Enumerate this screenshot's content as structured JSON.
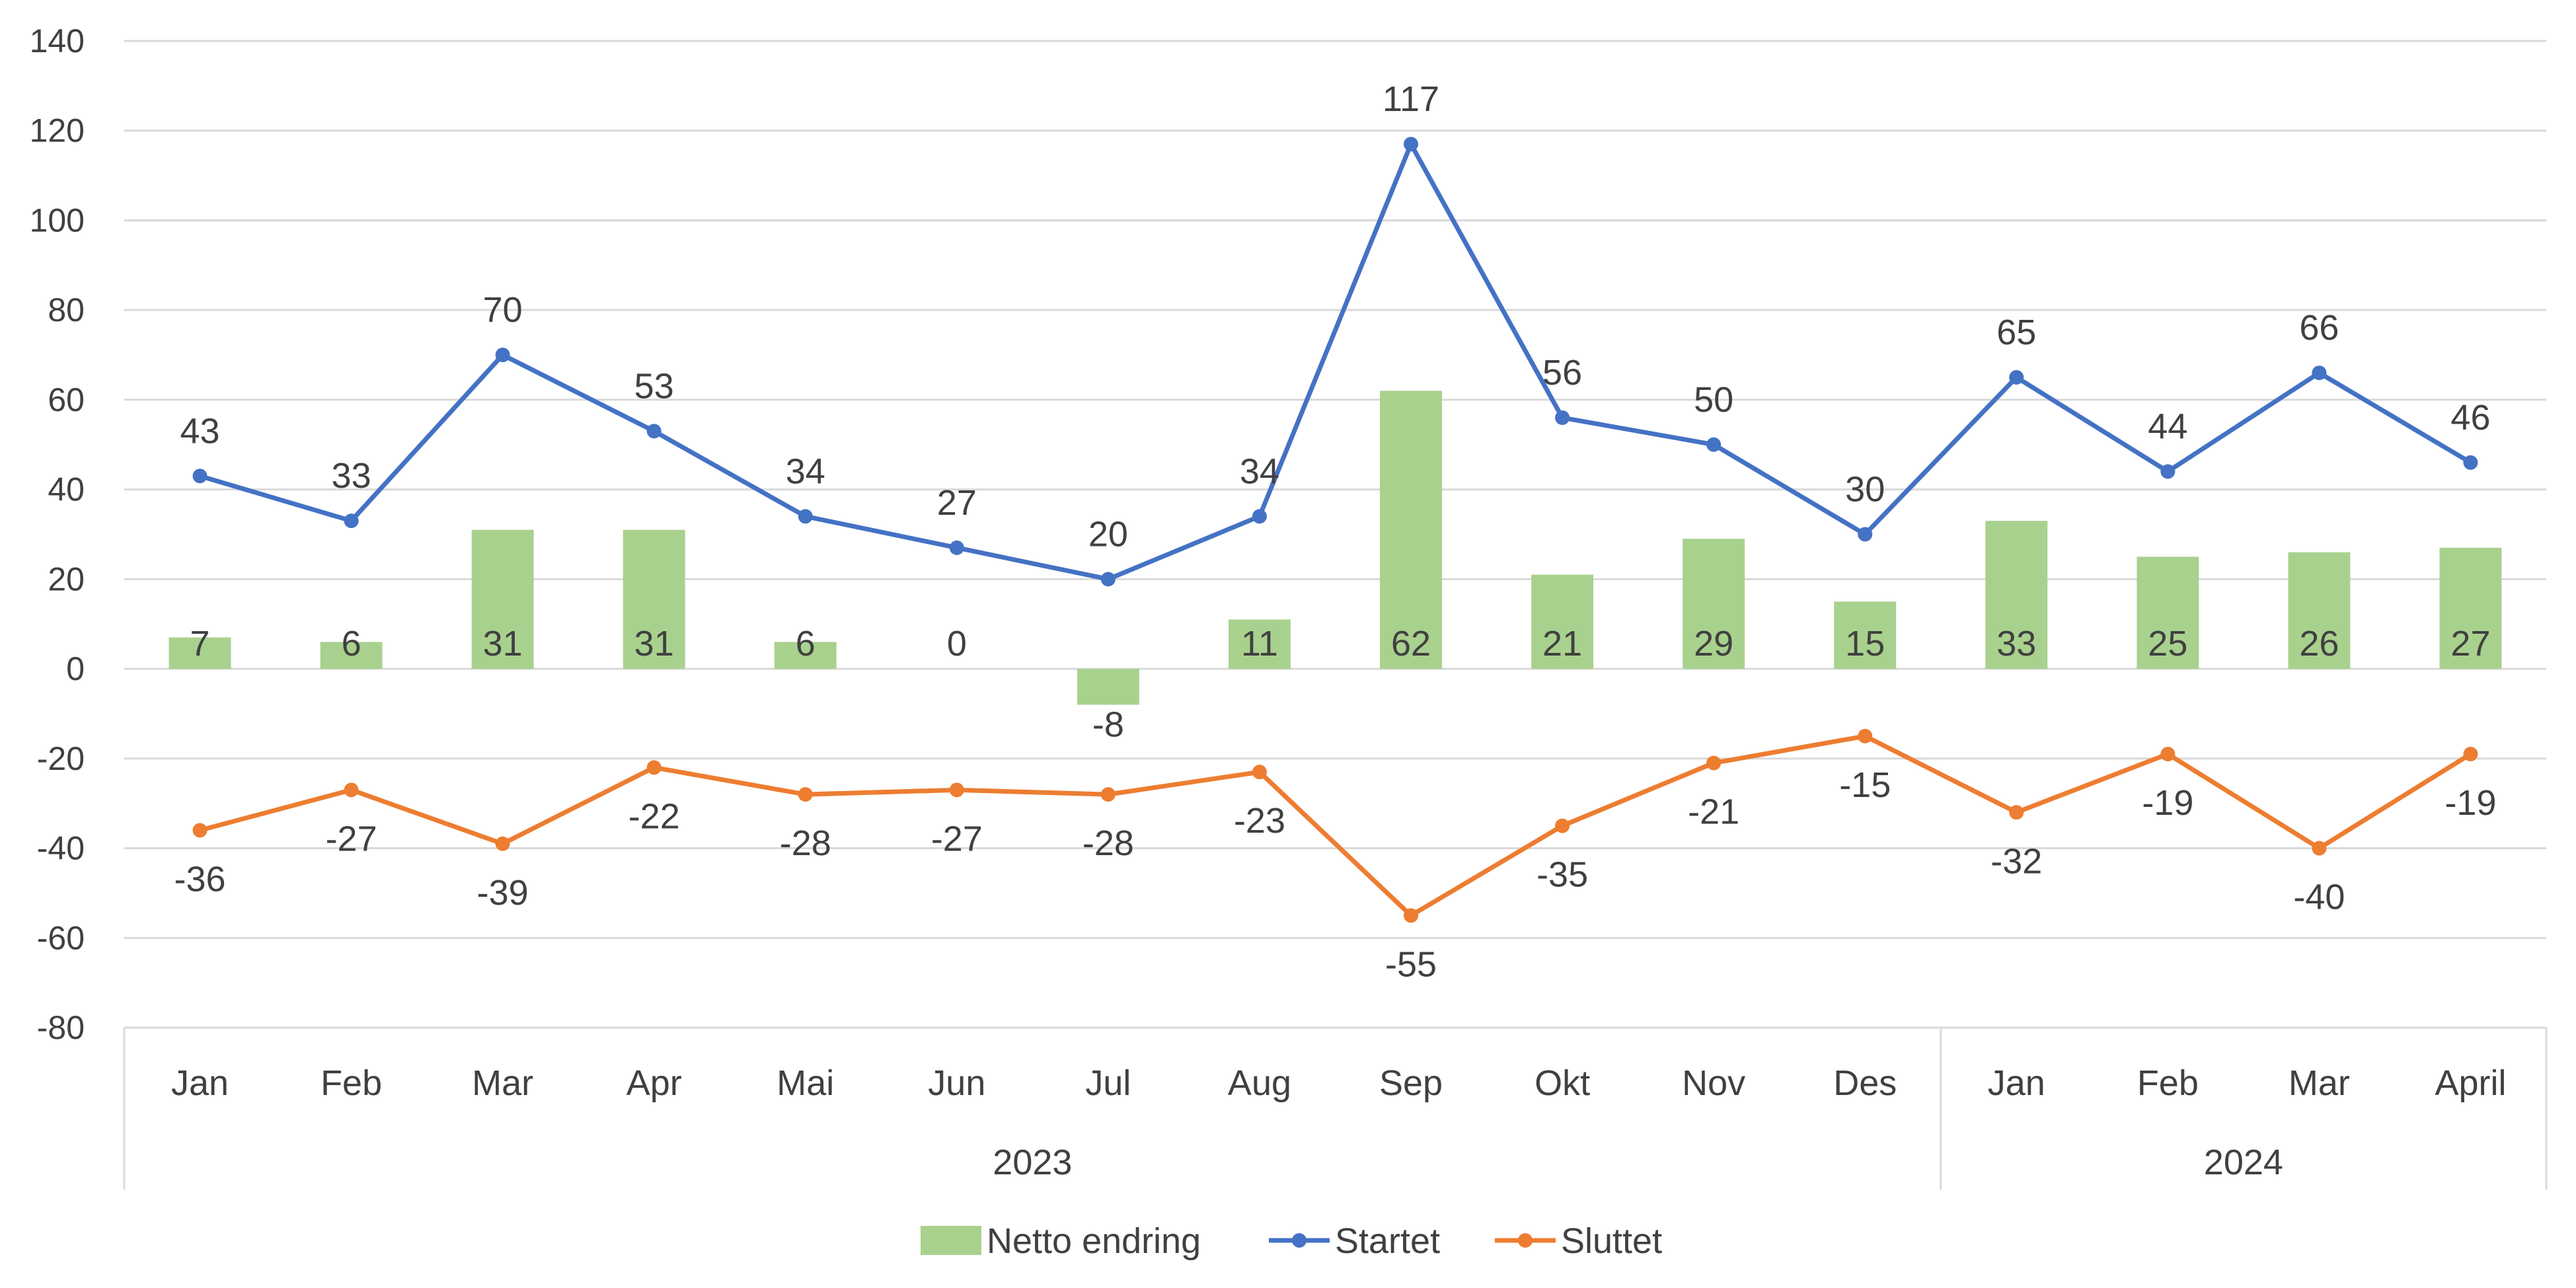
{
  "chart_data": {
    "type": "bar+line",
    "title": "",
    "yticks": [
      "140",
      "120",
      "100",
      "80",
      "60",
      "40",
      "20",
      "0",
      "-20",
      "-40",
      "-60",
      "-80"
    ],
    "ylim": [
      -80,
      140
    ],
    "ystep": 20,
    "grid": true,
    "categories": [
      "Jan",
      "Feb",
      "Mar",
      "Apr",
      "Mai",
      "Jun",
      "Jul",
      "Aug",
      "Sep",
      "Okt",
      "Nov",
      "Des",
      "Jan",
      "Feb",
      "Mar",
      "April"
    ],
    "groups": [
      {
        "label": "2023",
        "start": 0,
        "end": 11
      },
      {
        "label": "2024",
        "start": 12,
        "end": 15
      }
    ],
    "series": [
      {
        "name": "Netto endring",
        "kind": "bar",
        "color": "#a9d18e",
        "values": [
          7,
          6,
          31,
          31,
          6,
          0,
          -8,
          11,
          62,
          21,
          29,
          15,
          33,
          25,
          26,
          27
        ],
        "labels": [
          "7",
          "6",
          "31",
          "31",
          "6",
          "0",
          "-8",
          "11",
          "62",
          "21",
          "29",
          "15",
          "33",
          "25",
          "26",
          "27"
        ]
      },
      {
        "name": "Startet",
        "kind": "line",
        "color": "#4472c4",
        "values": [
          43,
          33,
          70,
          53,
          34,
          27,
          20,
          34,
          117,
          56,
          50,
          30,
          65,
          44,
          66,
          46
        ],
        "labels": [
          "43",
          "33",
          "70",
          "53",
          "34",
          "27",
          "20",
          "34",
          "117",
          "56",
          "50",
          "30",
          "65",
          "44",
          "66",
          "46"
        ]
      },
      {
        "name": "Sluttet",
        "kind": "line",
        "color": "#ed7d31",
        "values": [
          -36,
          -27,
          -39,
          -22,
          -28,
          -27,
          -28,
          -23,
          -55,
          -35,
          -21,
          -15,
          -32,
          -19,
          -40,
          -19
        ],
        "labels": [
          "-36",
          "-27",
          "-39",
          "-22",
          "-28",
          "-27",
          "-28",
          "-23",
          "-55",
          "-35",
          "-21",
          "-15",
          "-32",
          "-19",
          "-40",
          "-19"
        ]
      }
    ],
    "legend": "bottom"
  }
}
